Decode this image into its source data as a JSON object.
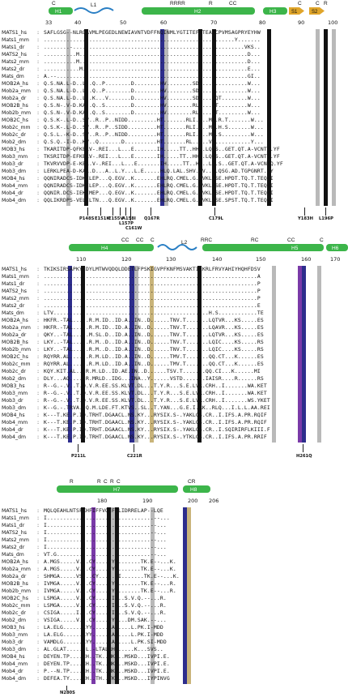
{
  "colors": {
    "helix": "#3cb54a",
    "strand": "#e0a52a",
    "loop": "#2a7fc4",
    "conserved_black": "#111111",
    "similar_gray": "#b9b9b9",
    "blue_col": "#2d2d8c",
    "tan_col": "#c9b47a",
    "purple_col": "#7a3aa8"
  },
  "names": [
    "MATS1_hs",
    "Mats1_mm",
    "Mats1_dr",
    "MATS2_hs",
    "Mats2_mm",
    "Mats2_dr",
    "Mats_dm",
    "MOB2A_hs",
    "Mob2a_mm",
    "Mob2a_dr",
    "MOB2B_hs",
    "Mob2b_mm",
    "MOB2C_hs",
    "Mob2c_mm",
    "Mob2c_dr",
    "Mob2_dm",
    "MOB3_hs",
    "Mob3_mm",
    "Mob3_dr",
    "Mob3_dm",
    "MOB4_hs",
    "Mob4_mm",
    "Mob4_dr",
    "Mob4_dm"
  ],
  "blocks": [
    {
      "ss_labels": [
        {
          "text": "H1",
          "type": "helix"
        },
        {
          "text": "L1",
          "type": "loop"
        },
        {
          "text": "H2",
          "type": "helix"
        },
        {
          "text": "H3",
          "type": "helix"
        },
        {
          "text": "S1",
          "type": "strand"
        },
        {
          "text": "S2",
          "type": "strand"
        }
      ],
      "top_marks": [
        "C",
        "RRRR",
        "R",
        "CC",
        "C",
        "C",
        "R"
      ],
      "ruler": [
        "33",
        "40",
        "50",
        "60",
        "70",
        "80",
        "90",
        "100"
      ],
      "seqs": [
        "SAFLGSG--NLRQAVMLPEGEDLNEWIAVNTVDFFNQINMLYGTITEFCTEASCPVMSAGPRYEYHW",
        "...........................................................Y.......",
        "........-.....................................................VKS..",
        "..........M....................................................D...",
        "..........M....................................................D...",
        "...........M...................................................E...",
        "A.--...........................................................GI..",
        "Q.S.NA.L-D..L..Q..P........D........HV........SDG...Q..........W...",
        "Q.S.NA.L-D..L..Q..P........D........HV........SDG...Q..........W...",
        "Q.S.NA.L-D..L..K...V.......D........HV........SDG...DQT........W...",
        "Q.S.N-.V-D.KA..Q..S........D........HV........RL....QT.........W...",
        "Q.S.N-.V-D.KA..Q..S........D........HV........RL....QT.........W...",
        "Q.S.K-.L-D..SV..R..P..NIDD.........HT.......RLI....MA.R.T.......W...",
        "Q.S.K-.L-D..SV..R..P..SIDD.........HT.......RLI....MA.H.S.......W...",
        "Q.S.L.-K-D..SV..R..P..NIDD.........HT.......RLI....MA.S.........W...",
        "Q.S.Q.-I-D..KV..Q.......D..........HT.......RL.....VS...........Y...",
        "TKARITDP-QFKELV-.REI...L...E.......IH.....TT..HH..LQ.S..GET.QT.A-VCNTQ.YF",
        "TKSRITDP-EFKELV-.REI...L...E.......IH.....TT..HH..LQ.S..GET.QT.A-VCNTQ.YF",
        "TKVRVVDP-E-KEL.V-.REI...L...E.......IH.....TT..HH..LQ.S..GET.QT.A-VCNTQ.YF",
        "LERKLPEA-D-KAL.D...A..L.Y...L.E.....HLQ.LAL.SHV.LV....QSG.AD.TGPGNRT.YY",
        "QQNIRADCS-IDKILEP...Q.EGV..K.......EHLRQ.CMEL.G.AVKLQSE.HPDT.TQ.T.TEQWI",
        "QQNIRADCS-IDKILEP...Q.EGV..K.......EHLRQ.CMEL.G.AVKLQSE.HPDT.TQ.T.TEQWI",
        "QQNIR.DCS-IEKIMEP...Q.EGV..K.......EHLRQ.CMEL.G.AVKLQSE.HPDT.TQ.T.TEQWI",
        "QQLIKRDPS-VELILTN...Q.EGV..K.......EHLRQ.CMEL.G.AVKLQSE.SPST.TQ.T.TEQWI"
      ],
      "mutations": [
        "P148S",
        "E151K",
        "E155V",
        "A158I",
        "L157P",
        "C161W",
        "Q167R",
        "C179L",
        "Y183H",
        "L196P"
      ]
    },
    {
      "ss_labels": [
        {
          "text": "H4",
          "type": "helix"
        },
        {
          "text": "L2",
          "type": "loop"
        },
        {
          "text": "H5",
          "type": "helix"
        },
        {
          "text": "H6",
          "type": "helix"
        }
      ],
      "top_marks": [
        "CC",
        "CC",
        "C",
        "RRC",
        "RC",
        "CC",
        "C"
      ],
      "ruler": [
        "110",
        "120",
        "130",
        "140",
        "150",
        "160",
        "170"
      ],
      "seqs": [
        "TKIKSIRSAPKYIDYLMTWVQDQLDDETLFPSKIGVPFKNFMSVAKTILKRLFRVYAHIYHQHFDSV",
        "..................................................................A",
        "..................................................................P",
        "..................................................................P",
        "..................................................................P",
        "..................................................................E",
        "LTV................................................H.S............TE",
        "HKFR.-TAL.....R.M.ID..ID.A..IN..D......TNV.T.......LQTVR...KS.....ES",
        "HKFR.-TAL.....R.M.ID..ID.A..IN..D......TNV.T.......LQAVR...KS.....ES",
        "QKY..-TAL.....M.SL.D..ID.A..IN..D......TNV.T.......LQTVR...KS.....ES",
        "LKY..-TAL.....R.M..D..ID.A..IN..D......TNV.T.......LQIC....KS.....RS",
        "LKY..-TAL.....R.M..D..ID.A..IN..D......TNV.T.......LQIC....KS.....RS",
        "RQYRR.AL......R.M.LD..ID.A..IN..D......TMV.T.......QQ.CT...K......ES",
        "RQYRR.AL......R.M.LD..ID.A..IN..D......TMV.T.......QQ.CT...K......ES",
        "KQY.KIT.AL...R.M.LD..ID.AE.IN..D......TSV.T.......QQ.CI...K......MI",
        "DLY...AQ.....R.MRLD..IDG...INA..Y......VSTD.......IAISR....R......RS",
        "R--G.-.V..T.Q.V.R.EE.SS.KLVT.DL...T.Y.R...S.E.LVR.CRH..I.......WA.KET",
        "R--G.-.V..T.Q.V.R.EE.SS.KLVT.DL...T.Y.R...S.E.LVR.CRH..I.......WA.KET",
        "R--G.-.V..T.Q.V.R.EE.SS.KLVT.DL...T.Y.R...S.E.LVR.CRH..I.......WS.YKET",
        "K--G.-.TRVA..Q.M.LDE.FT.KTVS..SL..T.YAN...G.E.I.RK..RLQ...I.L.L.AA.REI",
        "K---T.KE.P.ID.TRHT.DGAACL.NS.KY...RYSIX.S-.YAKLGS.CR..I.IFS.A.PR.RQIF",
        "K---T.KE.P.ID.TRHT.DGAACL.NS.KY...RYSIX.S-.YAKLGS.CR..I.IFS.A.PR.RQIF",
        "K---T.KE.P.ID.TRHT.DGAACL.NS.KY...RYSIX.S-.YAKLGS.CR..I.SQIRIRFLKIII.F",
        "K---T.KE.P.ID.TRHT.DGAACL.NS.KY...RYSIX.S-.YTKLGS.CR..I.IFS.A.PR.RRIF"
      ],
      "mutations": [
        "P211L",
        "C221R",
        "H261Q"
      ]
    },
    {
      "ss_labels": [
        {
          "text": "H7",
          "type": "helix"
        },
        {
          "text": "H8",
          "type": "helix"
        }
      ],
      "top_marks": [
        "R",
        "R",
        "C",
        "R",
        "C",
        "CR"
      ],
      "ruler": [
        "180",
        "190",
        "200",
        "206"
      ],
      "seqs": [
        "MQLQEAHLNTSFKHFIFFVQEFNLIDRRELAP--LQE",
        "I.................................--...",
        "I................................--...",
        "I................................--...",
        "I................................--...",
        "I................................--...",
        "VT.G.............................--...",
        "A.MGS.....V...CY.....YI.......TK.E--...K.",
        "A.MGS.....V...CY.....YI.......TK.E--...K.",
        "SHMGA.....VS...CY.....YI.......TK.E--...K.",
        "IVMGA.....V...CY.....YI.......TK.E--...R.",
        "IVMGA.....V...CY.....YI.......TK.E--...R.",
        "LSMGA.....V...CY.....IR..S.V.Q.--...R.",
        "LSMGA.....V...CY.....IR..S.V.Q.--...R.",
        "CSIGA.....I...CY.....IR..S.V.Q.--...R.",
        "VSIGA.....V...CY.....YS...DM.SAK.--...",
        "LA.ELG......LYY.....LAR....L.PK.I-MDD",
        "LA.ELG......LYY.....LAR....L.PK.I-MDD",
        "VAMDLG......LYY.....LAR....L.PK.SI-MDD",
        "AL.GLAT......L.-LTALRHR.....K...SVS..",
        "DEYEN.TP....CH..TK..MKY..MSKD...IVPI.E.",
        "DEYEN.TP....CH..TK..MKY..MSKD...IVPI.E.",
        "P.--N.TP....CH..TK..MKY..MSKD...IVPI.E.",
        "DEFEA.TY....CH..TH..TKY..MSKD...IYPINVG"
      ],
      "mutations": [
        "N280S"
      ]
    }
  ]
}
